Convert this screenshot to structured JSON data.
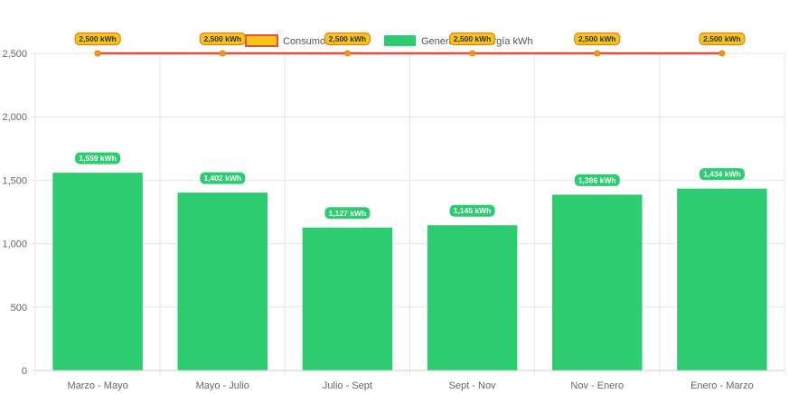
{
  "chart_data": {
    "type": "bar",
    "categories": [
      "Marzo - Mayo",
      "Mayo - Julio",
      "Julio - Sept",
      "Sept - Nov",
      "Nov - Enero",
      "Enero - Marzo"
    ],
    "series": [
      {
        "name": "Consumo kWh",
        "type": "line",
        "values": [
          2500,
          2500,
          2500,
          2500,
          2500,
          2500
        ],
        "data_labels": [
          "2,500 kWh",
          "2,500 kWh",
          "2,500 kWh",
          "2,500 kWh",
          "2,500 kWh",
          "2,500 kWh"
        ]
      },
      {
        "name": "Generación Energía kWh",
        "type": "bar",
        "values": [
          1559,
          1402,
          1127,
          1145,
          1386,
          1434
        ],
        "data_labels": [
          "1,559 kWh",
          "1,402 kWh",
          "1,127 kWh",
          "1,145 kWh",
          "1,386 kWh",
          "1,434 kWh"
        ]
      }
    ],
    "ylim": [
      0,
      2500
    ],
    "yticks": [
      0,
      500,
      1000,
      1500,
      2000,
      2500
    ],
    "ytick_labels": [
      "0",
      "500",
      "1,000",
      "1,500",
      "2,000",
      "2,500"
    ],
    "grid": true,
    "legend_position": "top-center",
    "title": "",
    "xlabel": "",
    "ylabel": ""
  },
  "colors": {
    "bar": "#2ecc71",
    "line": "#e74c3c",
    "line_point": "#f39c12",
    "line_label_bg": "#f5c518",
    "line_label_border": "#e67e22",
    "legend_consumo_fill": "#f5c518",
    "legend_consumo_border": "#e74c3c",
    "grid": "#e6e6e6",
    "axis": "#cccccc"
  }
}
